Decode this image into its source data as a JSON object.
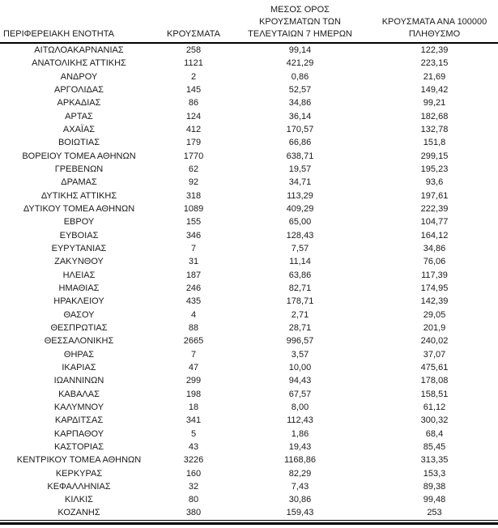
{
  "table": {
    "header": [
      "ΠΕΡΙΦΕΡΕΙΑΚΗ ΕΝΟΤΗΤΑ",
      "ΚΡΟΥΣΜΑΤΑ",
      "ΜΕΣΟΣ ΟΡΟΣ\nΚΡΟΥΣΜΑΤΩΝ ΤΩΝ\nΤΕΛΕΥΤΑΙΩΝ 7 ΗΜΕΡΩΝ",
      "ΚΡΟΥΣΜΑΤΑ ΑΝΑ 100000\nΠΛΗΘΥΣΜΟ"
    ],
    "rows": [
      [
        "ΑΙΤΩΛΟΑΚΑΡΝΑΝΙΑΣ",
        "258",
        "99,14",
        "122,39"
      ],
      [
        "ΑΝΑΤΟΛΙΚΗΣ ΑΤΤΙΚΗΣ",
        "1121",
        "421,29",
        "223,15"
      ],
      [
        "ΑΝΔΡΟΥ",
        "2",
        "0,86",
        "21,69"
      ],
      [
        "ΑΡΓΟΛΙΔΑΣ",
        "145",
        "52,57",
        "149,42"
      ],
      [
        "ΑΡΚΑΔΙΑΣ",
        "86",
        "34,86",
        "99,21"
      ],
      [
        "ΑΡΤΑΣ",
        "124",
        "36,14",
        "182,68"
      ],
      [
        "ΑΧΑΪΑΣ",
        "412",
        "170,57",
        "132,78"
      ],
      [
        "ΒΟΙΩΤΙΑΣ",
        "179",
        "66,86",
        "151,8"
      ],
      [
        "ΒΟΡΕΙΟΥ ΤΟΜΕΑ ΑΘΗΝΩΝ",
        "1770",
        "638,71",
        "299,15"
      ],
      [
        "ΓΡΕΒΕΝΩΝ",
        "62",
        "19,57",
        "195,23"
      ],
      [
        "ΔΡΑΜΑΣ",
        "92",
        "34,71",
        "93,6"
      ],
      [
        "ΔΥΤΙΚΗΣ ΑΤΤΙΚΗΣ",
        "318",
        "113,29",
        "197,61"
      ],
      [
        "ΔΥΤΙΚΟΥ ΤΟΜΕΑ ΑΘΗΝΩΝ",
        "1089",
        "409,29",
        "222,39"
      ],
      [
        "ΕΒΡΟΥ",
        "155",
        "65,00",
        "104,77"
      ],
      [
        "ΕΥΒΟΙΑΣ",
        "346",
        "128,43",
        "164,12"
      ],
      [
        "ΕΥΡΥΤΑΝΙΑΣ",
        "7",
        "7,57",
        "34,86"
      ],
      [
        "ΖΑΚΥΝΘΟΥ",
        "31",
        "11,14",
        "76,06"
      ],
      [
        "ΗΛΕΙΑΣ",
        "187",
        "63,86",
        "117,39"
      ],
      [
        "ΗΜΑΘΙΑΣ",
        "246",
        "82,71",
        "174,95"
      ],
      [
        "ΗΡΑΚΛΕΙΟΥ",
        "435",
        "178,71",
        "142,39"
      ],
      [
        "ΘΑΣΟΥ",
        "4",
        "2,71",
        "29,05"
      ],
      [
        "ΘΕΣΠΡΩΤΙΑΣ",
        "88",
        "28,71",
        "201,9"
      ],
      [
        "ΘΕΣΣΑΛΟΝΙΚΗΣ",
        "2665",
        "996,57",
        "240,02"
      ],
      [
        "ΘΗΡΑΣ",
        "7",
        "3,57",
        "37,07"
      ],
      [
        "ΙΚΑΡΙΑΣ",
        "47",
        "10,00",
        "475,61"
      ],
      [
        "ΙΩΑΝΝΙΝΩΝ",
        "299",
        "94,43",
        "178,08"
      ],
      [
        "ΚΑΒΑΛΑΣ",
        "198",
        "67,57",
        "158,51"
      ],
      [
        "ΚΑΛΥΜΝΟΥ",
        "18",
        "8,00",
        "61,12"
      ],
      [
        "ΚΑΡΔΙΤΣΑΣ",
        "341",
        "112,43",
        "300,32"
      ],
      [
        "ΚΑΡΠΑΘΟΥ",
        "5",
        "1,86",
        "68,4"
      ],
      [
        "ΚΑΣΤΟΡΙΑΣ",
        "43",
        "19,43",
        "85,45"
      ],
      [
        "ΚΕΝΤΡΙΚΟΥ ΤΟΜΕΑ ΑΘΗΝΩΝ",
        "3226",
        "1168,86",
        "313,35"
      ],
      [
        "ΚΕΡΚΥΡΑΣ",
        "160",
        "82,29",
        "153,3"
      ],
      [
        "ΚΕΦΑΛΛΗΝΙΑΣ",
        "32",
        "7,43",
        "89,38"
      ],
      [
        "ΚΙΛΚΙΣ",
        "80",
        "30,86",
        "99,48"
      ],
      [
        "ΚΟΖΑΝΗΣ",
        "380",
        "159,43",
        "253"
      ]
    ]
  },
  "colors": {
    "text": "#1a1a1a",
    "rule": "#000000",
    "background": "#ffffff"
  }
}
